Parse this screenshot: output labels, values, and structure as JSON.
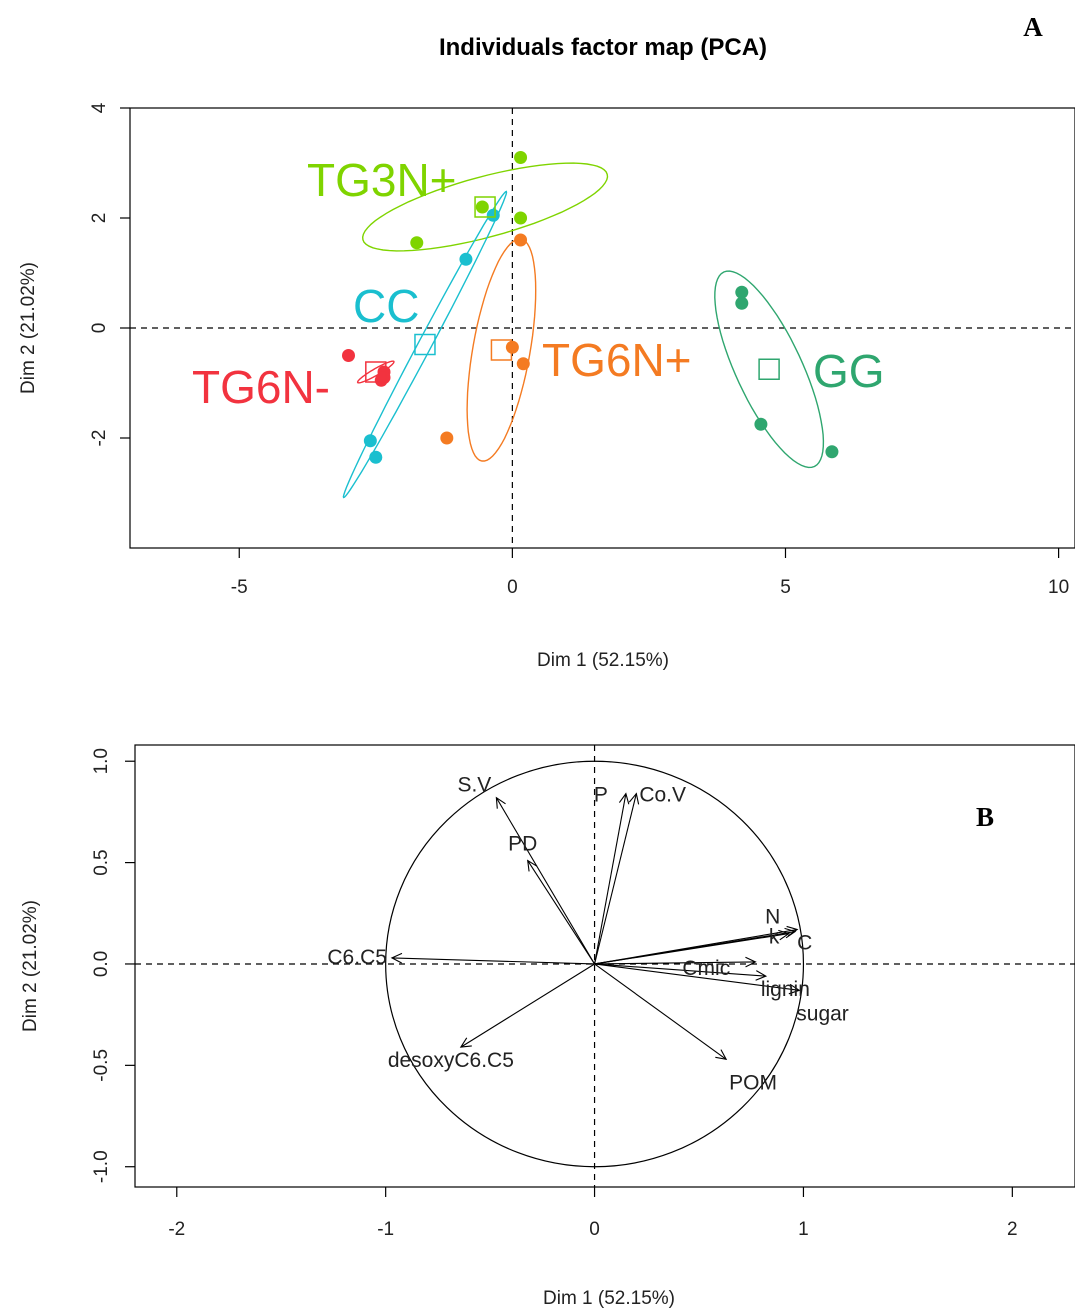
{
  "chart_data": [
    {
      "type": "scatter",
      "panel": "A",
      "title": "Individuals factor map (PCA)",
      "xlabel": "Dim 1 (52.15%)",
      "ylabel": "Dim 2 (21.02%)",
      "xlim": [
        -7,
        10.3
      ],
      "ylim": [
        -4,
        4
      ],
      "xticks": [
        -5,
        0,
        5,
        10
      ],
      "yticks": [
        -2,
        0,
        2,
        4
      ],
      "reference_lines": "dashed at x=0 and y=0",
      "groups": [
        {
          "name": "TG3N+",
          "color": "#7FD400",
          "points": [
            [
              -1.75,
              1.55
            ],
            [
              -0.55,
              2.2
            ],
            [
              0.15,
              3.1
            ],
            [
              0.15,
              2.0
            ]
          ],
          "barycenter": [
            -0.5,
            2.2
          ],
          "ellipse": {
            "cx": -0.5,
            "cy": 2.2,
            "rx": 2.3,
            "ry": 0.55,
            "angle_deg": 15
          }
        },
        {
          "name": "CC",
          "color": "#1ABFCF",
          "points": [
            [
              -0.35,
              2.05
            ],
            [
              -0.85,
              1.25
            ],
            [
              -2.6,
              -2.05
            ],
            [
              -2.5,
              -2.35
            ]
          ],
          "barycenter": [
            -1.6,
            -0.3
          ],
          "ellipse": {
            "cx": -1.6,
            "cy": -0.3,
            "rx": 3.15,
            "ry": 0.12,
            "angle_deg": 62
          }
        },
        {
          "name": "TG6N-",
          "color": "#F2333F",
          "points": [
            [
              -3.0,
              -0.5
            ],
            [
              -2.35,
              -0.8
            ],
            [
              -2.4,
              -0.95
            ],
            [
              -2.35,
              -0.9
            ]
          ],
          "barycenter": [
            -2.5,
            -0.8
          ],
          "ellipse": {
            "cx": -2.5,
            "cy": -0.8,
            "rx": 0.38,
            "ry": 0.06,
            "angle_deg": 30
          }
        },
        {
          "name": "TG6N+",
          "color": "#F47B22",
          "points": [
            [
              0.15,
              1.6
            ],
            [
              0.0,
              -0.35
            ],
            [
              0.2,
              -0.65
            ],
            [
              -1.2,
              -2.0
            ]
          ],
          "barycenter": [
            -0.2,
            -0.4
          ],
          "ellipse": {
            "cx": -0.2,
            "cy": -0.4,
            "rx": 2.05,
            "ry": 0.52,
            "angle_deg": 80
          }
        },
        {
          "name": "GG",
          "color": "#2FA66F",
          "points": [
            [
              4.2,
              0.65
            ],
            [
              4.2,
              0.45
            ],
            [
              4.55,
              -1.75
            ],
            [
              5.85,
              -2.25
            ]
          ],
          "barycenter": [
            4.7,
            -0.75
          ],
          "ellipse": {
            "cx": 4.7,
            "cy": -0.75,
            "rx": 1.95,
            "ry": 0.6,
            "angle_deg": -65
          }
        }
      ]
    },
    {
      "type": "variables-factor-map",
      "panel": "B",
      "xlabel": "Dim 1 (52.15%)",
      "ylabel": "Dim 2 (21.02%)",
      "xlim": [
        -2.2,
        2.3
      ],
      "ylim": [
        -1.1,
        1.08
      ],
      "xticks": [
        -2,
        -1,
        0,
        1,
        2
      ],
      "yticks": [
        -1.0,
        -0.5,
        0.0,
        0.5,
        1.0
      ],
      "ytick_labels": [
        "-1.0",
        "-0.5",
        "0.0",
        "0.5",
        "1.0"
      ],
      "correlation_circle_radius": 1,
      "reference_lines": "dashed at x=0 and y=0",
      "variables": [
        {
          "name": "S.V",
          "x": -0.47,
          "y": 0.82
        },
        {
          "name": "PD",
          "x": -0.32,
          "y": 0.51
        },
        {
          "name": "P",
          "x": 0.15,
          "y": 0.84
        },
        {
          "name": "Co.V",
          "x": 0.2,
          "y": 0.84
        },
        {
          "name": "N",
          "x": 0.97,
          "y": 0.17
        },
        {
          "name": "k",
          "x": 0.93,
          "y": 0.15
        },
        {
          "name": "C",
          "x": 0.96,
          "y": 0.16
        },
        {
          "name": "Cmic",
          "x": 0.77,
          "y": 0.01
        },
        {
          "name": "lignin",
          "x": 0.82,
          "y": -0.06
        },
        {
          "name": "sugar",
          "x": 0.98,
          "y": -0.13
        },
        {
          "name": "C6.C5",
          "x": -0.97,
          "y": 0.03
        },
        {
          "name": "desoxyC6.C5",
          "x": -0.64,
          "y": -0.41
        },
        {
          "name": "POM",
          "x": 0.63,
          "y": -0.47
        }
      ]
    }
  ]
}
